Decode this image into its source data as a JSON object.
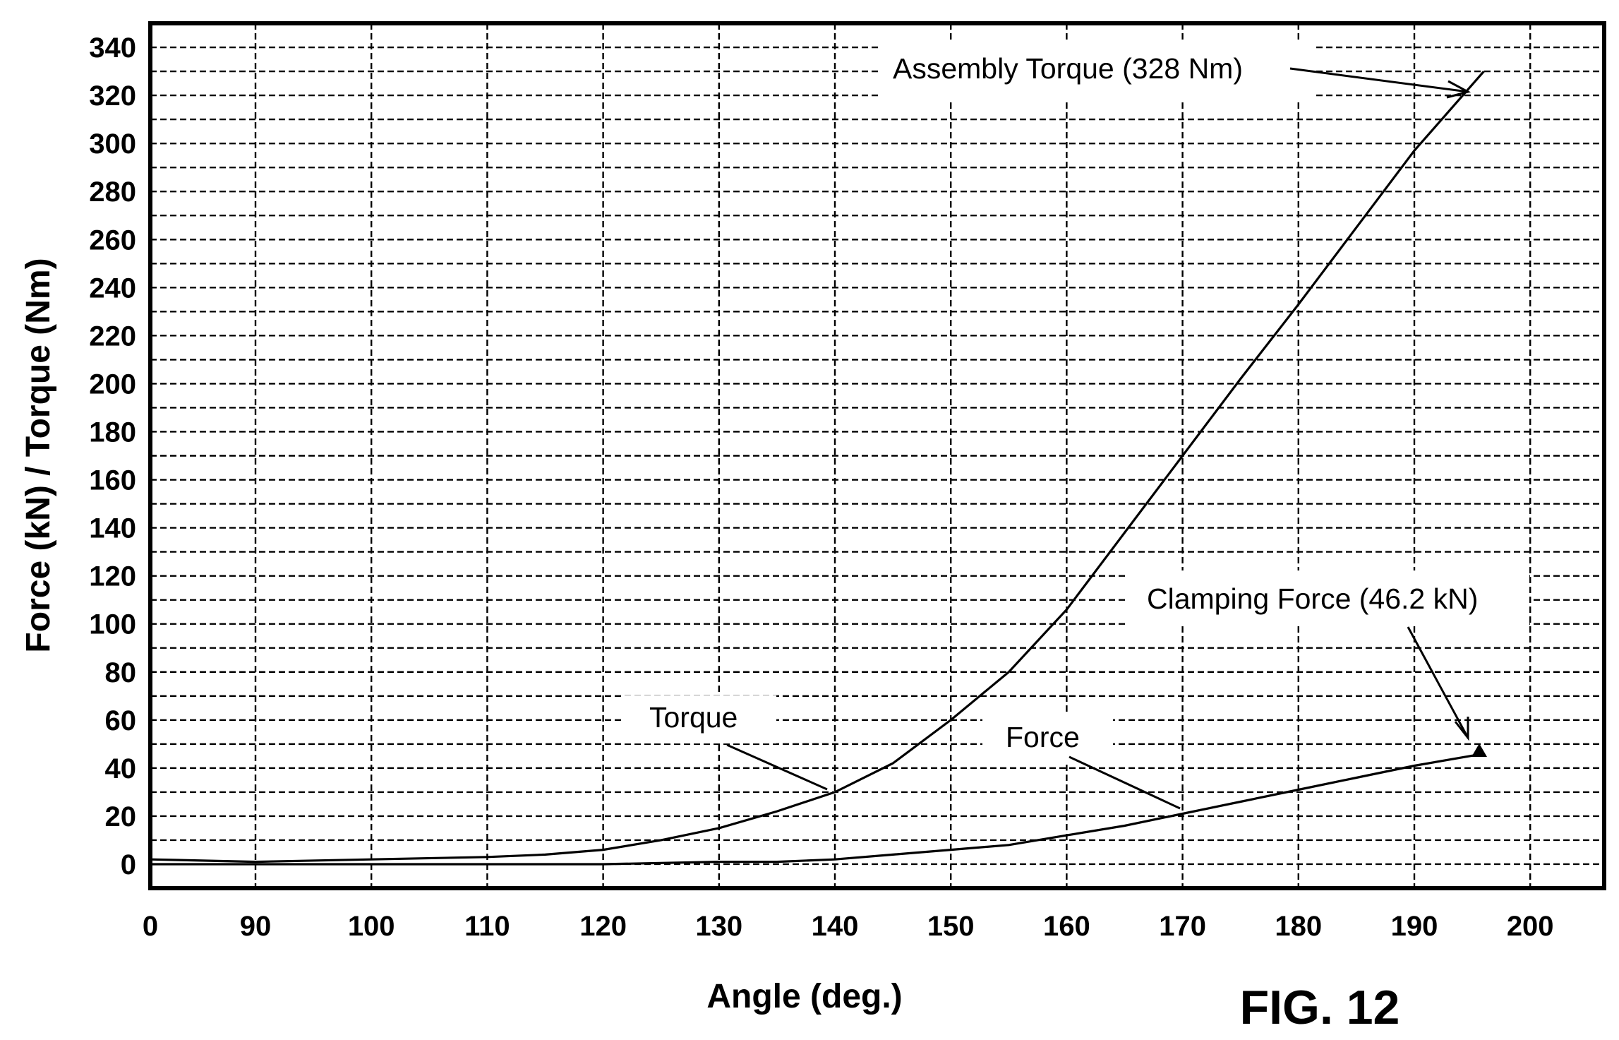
{
  "figure_label": "FIG. 12",
  "chart_data": {
    "type": "line",
    "title": "",
    "xlabel": "Angle (deg.)",
    "ylabel": "Force (kN) / Torque (Nm)",
    "x_ticks": [
      "0",
      "90",
      "100",
      "110",
      "120",
      "130",
      "140",
      "150",
      "160",
      "170",
      "180",
      "190",
      "200"
    ],
    "y_ticks": [
      "0",
      "20",
      "40",
      "60",
      "80",
      "100",
      "120",
      "140",
      "160",
      "180",
      "200",
      "220",
      "240",
      "260",
      "280",
      "300",
      "320",
      "340"
    ],
    "ylim": [
      -10,
      350
    ],
    "grid": true,
    "series": [
      {
        "name": "Torque",
        "x": [
          80,
          90,
          100,
          110,
          115,
          120,
          125,
          130,
          135,
          140,
          145,
          150,
          155,
          160,
          165,
          170,
          175,
          180,
          185,
          190,
          196
        ],
        "y": [
          2,
          1,
          2,
          3,
          4,
          6,
          10,
          15,
          22,
          30,
          42,
          60,
          80,
          106,
          138,
          170,
          202,
          233,
          265,
          297,
          330
        ]
      },
      {
        "name": "Force",
        "x": [
          80,
          90,
          100,
          110,
          120,
          130,
          135,
          140,
          145,
          150,
          155,
          160,
          165,
          170,
          175,
          180,
          185,
          190,
          196
        ],
        "y": [
          0,
          0,
          0,
          0,
          0,
          1,
          1,
          2,
          4,
          6,
          8,
          12,
          16,
          21,
          26,
          31,
          36,
          41,
          46
        ]
      }
    ],
    "annotations": [
      {
        "text": "Assembly Torque (328 Nm)",
        "x": 196,
        "y": 330
      },
      {
        "text": "Clamping Force (46.2 kN)",
        "x": 195,
        "y": 49
      },
      {
        "text": "Torque",
        "x": 140,
        "y": 30
      },
      {
        "text": "Force",
        "x": 170,
        "y": 21
      }
    ]
  }
}
